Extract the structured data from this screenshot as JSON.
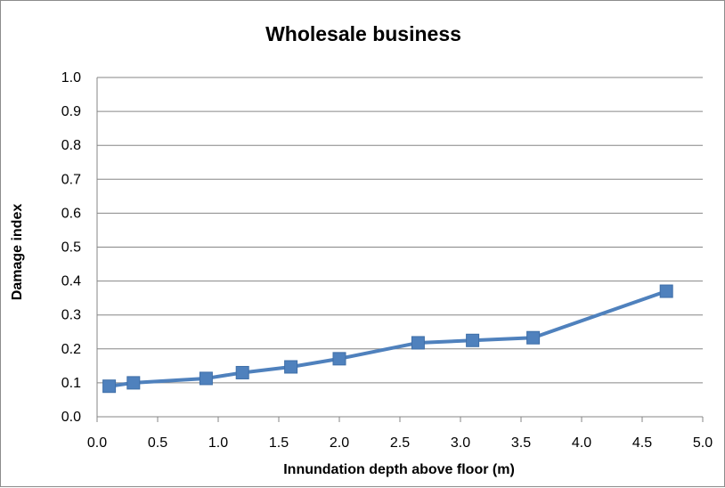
{
  "chart_data": {
    "type": "line",
    "title": "Wholesale business",
    "xlabel": "Innundation depth above floor (m)",
    "ylabel": "Damage index",
    "xlim": [
      0.0,
      5.0
    ],
    "ylim": [
      0.0,
      1.0
    ],
    "x_ticks": [
      "0.0",
      "0.5",
      "1.0",
      "1.5",
      "2.0",
      "2.5",
      "3.0",
      "3.5",
      "4.0",
      "4.5",
      "5.0"
    ],
    "y_ticks": [
      "0.0",
      "0.1",
      "0.2",
      "0.3",
      "0.4",
      "0.5",
      "0.6",
      "0.7",
      "0.8",
      "0.9",
      "1.0"
    ],
    "grid": "horizontal",
    "legend": "none",
    "series": [
      {
        "color": "#4F81BD",
        "marker": "square",
        "x": [
          0.1,
          0.3,
          0.9,
          1.2,
          1.6,
          2.0,
          2.65,
          3.1,
          3.6,
          4.7
        ],
        "y": [
          0.09,
          0.1,
          0.113,
          0.13,
          0.147,
          0.171,
          0.218,
          0.225,
          0.233,
          0.37
        ]
      }
    ]
  }
}
